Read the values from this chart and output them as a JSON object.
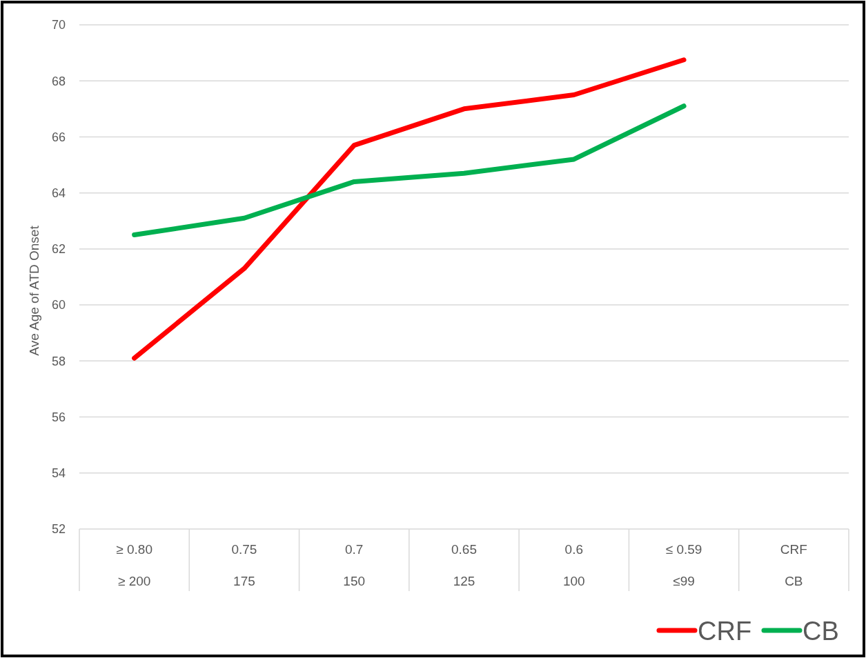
{
  "chart_data": {
    "type": "line",
    "ylabel": "Ave Age of ATD Onset",
    "categories": [
      "≥ 0.80\n≥ 200",
      "0.75\n175",
      "0.7\n150",
      "0.65\n125",
      "0.6\n100",
      "≤ 0.59\n≤99",
      "CRF\nCB"
    ],
    "series": [
      {
        "name": "CRF",
        "color": "#ff0000",
        "values": [
          58.1,
          61.3,
          65.7,
          67.0,
          67.5,
          68.75,
          null
        ]
      },
      {
        "name": "CB",
        "color": "#00b050",
        "values": [
          62.5,
          63.1,
          64.4,
          64.7,
          65.2,
          67.1,
          null
        ]
      }
    ],
    "ylim": [
      52,
      70
    ],
    "yticks": [
      52,
      54,
      56,
      58,
      60,
      62,
      64,
      66,
      68,
      70
    ],
    "grid": "y",
    "legend": "bottom right",
    "marker": "none",
    "line_style": "solid"
  }
}
